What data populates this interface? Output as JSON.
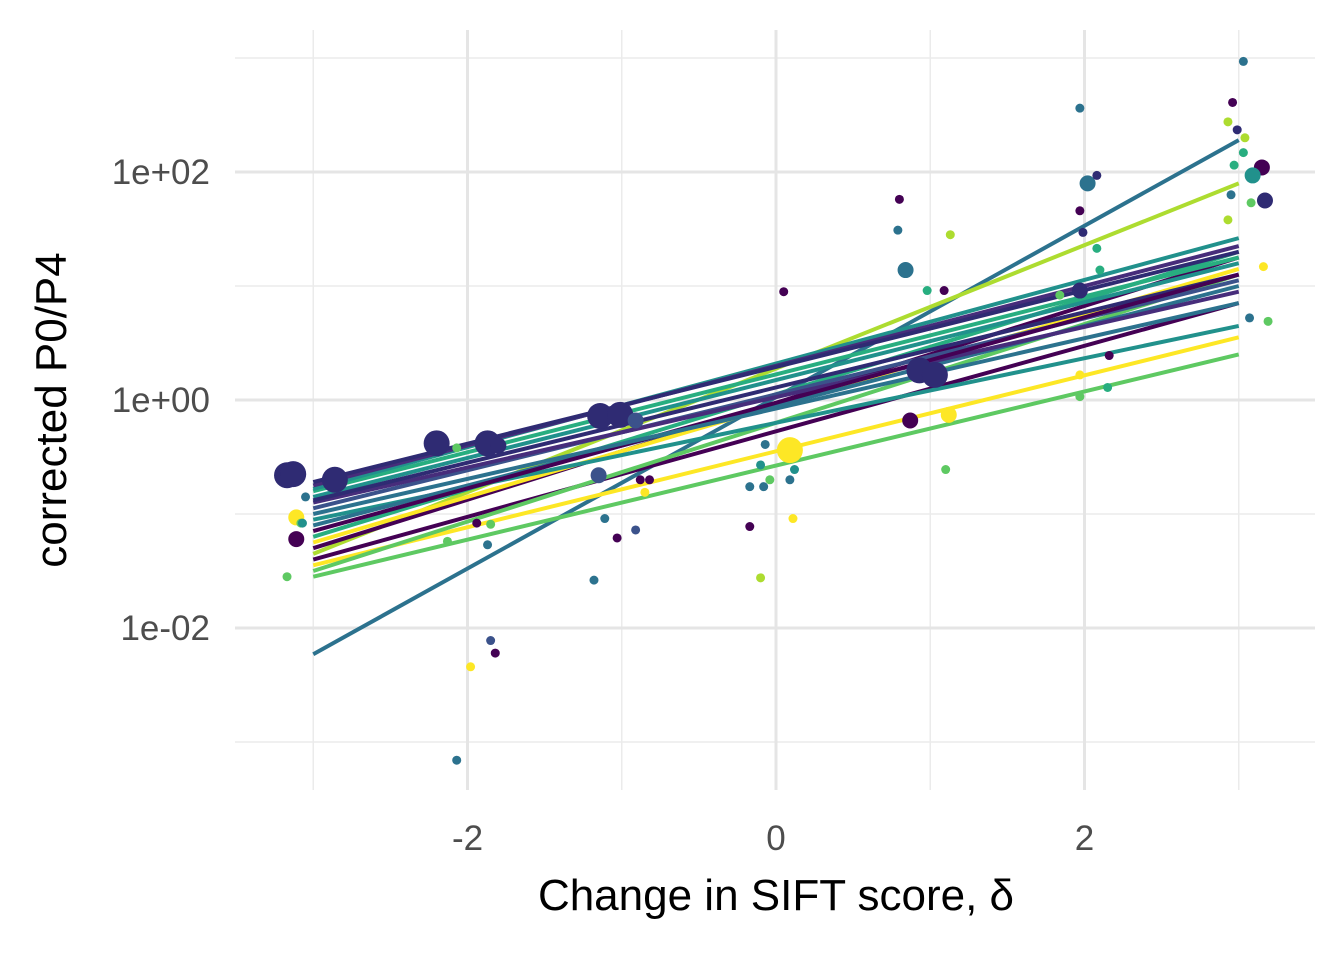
{
  "chart_data": {
    "type": "scatter",
    "title": "",
    "xlabel": "Change in SIFT score, δ",
    "ylabel": "corrected P0/P4",
    "xlim": [
      -3.5,
      3.5
    ],
    "ylim_log10": [
      -3.3,
      3.3
    ],
    "y_scale": "log10",
    "grid": true,
    "legend": "none",
    "x_ticks": [
      {
        "value": -2,
        "label": "-2"
      },
      {
        "value": 0,
        "label": "0"
      },
      {
        "value": 2,
        "label": "2"
      }
    ],
    "x_minor": [
      -3,
      -1,
      1,
      3
    ],
    "y_ticks": [
      {
        "log10": -2,
        "label": "1e-02"
      },
      {
        "log10": 0,
        "label": "1e+00"
      },
      {
        "log10": 2,
        "label": "1e+02"
      }
    ],
    "y_minor": [
      -3,
      -1,
      1,
      3
    ],
    "palette": [
      "#440154",
      "#472d7b",
      "#3b528b",
      "#2c728e",
      "#21918c",
      "#28ae80",
      "#5ec962",
      "#addc30",
      "#fde725",
      "#2f2b73"
    ],
    "lines_note": "fits from x=-3 to x=3, values in log10(y)",
    "lines": [
      {
        "y0": -2.23,
        "y1": 2.28,
        "c": 3
      },
      {
        "y0": -1.35,
        "y1": 1.9,
        "c": 7
      },
      {
        "y0": -1.55,
        "y1": 0.4,
        "c": 6
      },
      {
        "y0": -1.45,
        "y1": 0.55,
        "c": 8
      },
      {
        "y0": -1.4,
        "y1": 0.85,
        "c": 0
      },
      {
        "y0": -1.5,
        "y1": 1.1,
        "c": 6
      },
      {
        "y0": -1.3,
        "y1": 1.25,
        "c": 0
      },
      {
        "y0": -1.25,
        "y1": 1.15,
        "c": 8
      },
      {
        "y0": -1.2,
        "y1": 1.3,
        "c": 5
      },
      {
        "y0": -1.05,
        "y1": 0.65,
        "c": 4
      },
      {
        "y0": -1.1,
        "y1": 1.0,
        "c": 3
      },
      {
        "y0": -0.95,
        "y1": 1.05,
        "c": 2
      },
      {
        "y0": -0.9,
        "y1": 0.95,
        "c": 1
      },
      {
        "y0": -0.85,
        "y1": 1.2,
        "c": 4
      },
      {
        "y0": -0.8,
        "y1": 1.25,
        "c": 5
      },
      {
        "y0": -0.78,
        "y1": 1.42,
        "c": 4
      },
      {
        "y0": -0.75,
        "y1": 1.35,
        "c": 1
      },
      {
        "y0": -0.88,
        "y1": 1.1,
        "c": 9
      },
      {
        "y0": -0.72,
        "y1": 1.3,
        "c": 9
      },
      {
        "y0": -1.15,
        "y1": 1.1,
        "c": 0
      },
      {
        "y0": -1.0,
        "y1": 0.85,
        "c": 3
      }
    ],
    "points_note": "[x, log10(y), size(1=small,3=large), palette index]",
    "points": [
      [
        3.03,
        2.97,
        1,
        3
      ],
      [
        1.97,
        2.56,
        1,
        3
      ],
      [
        2.96,
        2.61,
        1,
        0
      ],
      [
        2.93,
        2.44,
        1,
        7
      ],
      [
        3.04,
        2.3,
        1,
        7
      ],
      [
        2.99,
        2.37,
        1,
        9
      ],
      [
        3.03,
        2.17,
        1,
        5
      ],
      [
        2.97,
        2.06,
        1,
        5
      ],
      [
        3.15,
        2.04,
        2,
        0
      ],
      [
        3.09,
        1.97,
        2,
        4
      ],
      [
        2.95,
        1.8,
        1,
        3
      ],
      [
        3.17,
        1.75,
        2,
        9
      ],
      [
        3.08,
        1.73,
        1,
        6
      ],
      [
        2.93,
        1.58,
        1,
        7
      ],
      [
        3.16,
        1.17,
        1,
        8
      ],
      [
        3.07,
        0.72,
        1,
        3
      ],
      [
        3.19,
        0.69,
        1,
        6
      ],
      [
        2.02,
        1.9,
        2,
        3
      ],
      [
        2.08,
        1.97,
        1,
        9
      ],
      [
        1.97,
        1.66,
        1,
        0
      ],
      [
        1.99,
        1.47,
        1,
        9
      ],
      [
        2.08,
        1.33,
        1,
        5
      ],
      [
        2.1,
        1.14,
        1,
        5
      ],
      [
        1.97,
        0.96,
        2,
        9
      ],
      [
        1.84,
        0.92,
        1,
        6
      ],
      [
        2.16,
        0.39,
        1,
        0
      ],
      [
        1.97,
        0.22,
        1,
        8
      ],
      [
        2.15,
        0.11,
        1,
        5
      ],
      [
        1.97,
        0.03,
        1,
        6
      ],
      [
        0.8,
        1.76,
        1,
        0
      ],
      [
        0.79,
        1.49,
        1,
        3
      ],
      [
        0.84,
        1.14,
        2,
        3
      ],
      [
        1.13,
        1.45,
        1,
        7
      ],
      [
        0.98,
        0.96,
        1,
        5
      ],
      [
        1.09,
        0.96,
        1,
        0
      ],
      [
        0.05,
        0.95,
        1,
        0
      ],
      [
        0.93,
        0.26,
        3,
        9
      ],
      [
        1.03,
        0.22,
        3,
        9
      ],
      [
        0.87,
        -0.18,
        2,
        0
      ],
      [
        1.12,
        -0.13,
        2,
        8
      ],
      [
        1.1,
        -0.61,
        1,
        6
      ],
      [
        -0.07,
        -0.39,
        1,
        3
      ],
      [
        -0.1,
        -0.57,
        1,
        4
      ],
      [
        0.09,
        -0.44,
        3,
        8
      ],
      [
        -0.04,
        -0.7,
        1,
        6
      ],
      [
        -0.17,
        -0.76,
        1,
        3
      ],
      [
        -0.08,
        -0.76,
        1,
        3
      ],
      [
        0.09,
        -0.7,
        1,
        3
      ],
      [
        0.12,
        -0.61,
        1,
        4
      ],
      [
        -0.17,
        -1.11,
        1,
        0
      ],
      [
        -0.1,
        -1.56,
        1,
        7
      ],
      [
        0.11,
        -1.04,
        1,
        8
      ],
      [
        -1.14,
        -0.14,
        3,
        9
      ],
      [
        -1.01,
        -0.13,
        3,
        9
      ],
      [
        -0.91,
        -0.18,
        2,
        2
      ],
      [
        -1.15,
        -0.66,
        2,
        2
      ],
      [
        -1.11,
        -1.04,
        1,
        3
      ],
      [
        -1.03,
        -1.21,
        1,
        0
      ],
      [
        -0.91,
        -1.14,
        1,
        2
      ],
      [
        -1.18,
        -1.58,
        1,
        3
      ],
      [
        -0.85,
        -0.81,
        1,
        8
      ],
      [
        -0.88,
        -0.7,
        1,
        0
      ],
      [
        -0.82,
        -0.7,
        1,
        0
      ],
      [
        -2.2,
        -0.38,
        3,
        9
      ],
      [
        -1.87,
        -0.38,
        3,
        9
      ],
      [
        -1.8,
        -0.4,
        2,
        9
      ],
      [
        -2.07,
        -0.42,
        1,
        6
      ],
      [
        -1.94,
        -1.08,
        1,
        0
      ],
      [
        -1.85,
        -1.09,
        1,
        6
      ],
      [
        -2.13,
        -1.24,
        1,
        6
      ],
      [
        -1.87,
        -1.27,
        1,
        3
      ],
      [
        -1.85,
        -2.11,
        1,
        2
      ],
      [
        -1.82,
        -2.22,
        1,
        0
      ],
      [
        -1.98,
        -2.34,
        1,
        8
      ],
      [
        -2.07,
        -3.16,
        1,
        3
      ],
      [
        -3.17,
        -0.66,
        3,
        9
      ],
      [
        -3.13,
        -0.65,
        3,
        9
      ],
      [
        -2.86,
        -0.7,
        3,
        9
      ],
      [
        -3.05,
        -0.85,
        1,
        3
      ],
      [
        -3.11,
        -1.03,
        2,
        8
      ],
      [
        -3.08,
        -1.08,
        1,
        6
      ],
      [
        -3.07,
        -1.08,
        1,
        4
      ],
      [
        -3.11,
        -1.22,
        2,
        0
      ],
      [
        -3.17,
        -1.55,
        1,
        6
      ]
    ]
  }
}
